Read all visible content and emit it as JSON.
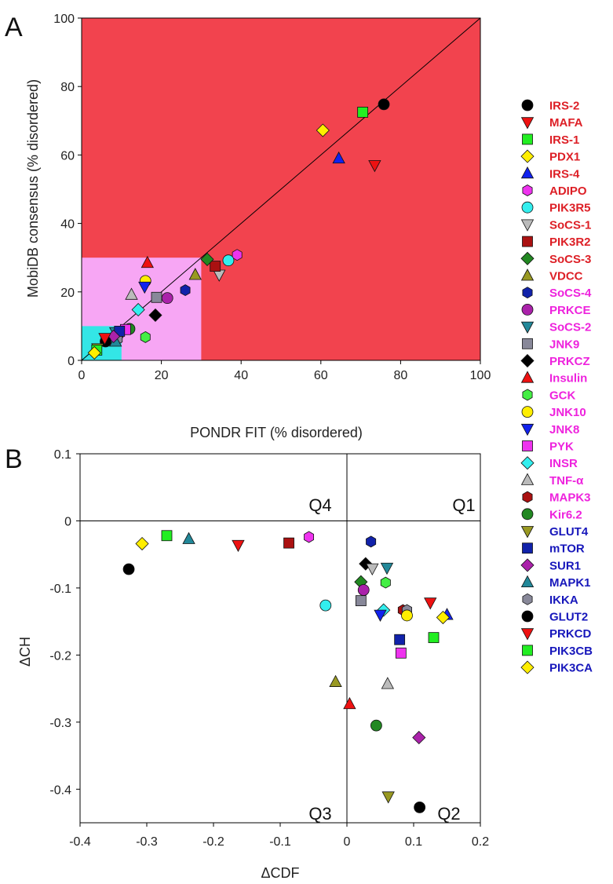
{
  "colors": {
    "red": "#dd1f26",
    "magenta": "#ee22dd",
    "blue": "#1717bb",
    "region_red": "#f2434e",
    "region_pink": "#f7a6f4",
    "region_cyan": "#33e6e6"
  },
  "legend": [
    {
      "name": "IRS-2",
      "marker": "circle",
      "fill": "#000000",
      "label_color": "#dd1f26"
    },
    {
      "name": "MAFA",
      "marker": "triangle-down",
      "fill": "#ee1111",
      "label_color": "#dd1f26"
    },
    {
      "name": "IRS-1",
      "marker": "square",
      "fill": "#22ee22",
      "label_color": "#dd1f26"
    },
    {
      "name": "PDX1",
      "marker": "diamond",
      "fill": "#ffee00",
      "label_color": "#dd1f26"
    },
    {
      "name": "IRS-4",
      "marker": "triangle-up",
      "fill": "#1122ee",
      "label_color": "#dd1f26"
    },
    {
      "name": "ADIPO",
      "marker": "hexagon",
      "fill": "#ee33ee",
      "label_color": "#dd1f26"
    },
    {
      "name": "PIK3R5",
      "marker": "circle",
      "fill": "#33eeee",
      "label_color": "#dd1f26"
    },
    {
      "name": "SoCS-1",
      "marker": "triangle-down",
      "fill": "#bbbbbb",
      "label_color": "#dd1f26"
    },
    {
      "name": "PIK3R2",
      "marker": "square",
      "fill": "#aa1111",
      "label_color": "#dd1f26"
    },
    {
      "name": "SoCS-3",
      "marker": "diamond",
      "fill": "#228822",
      "label_color": "#dd1f26"
    },
    {
      "name": "VDCC",
      "marker": "triangle-up",
      "fill": "#999922",
      "label_color": "#dd1f26"
    },
    {
      "name": "SoCS-4",
      "marker": "hexagon",
      "fill": "#1122aa",
      "label_color": "#ee22dd"
    },
    {
      "name": "PRKCE",
      "marker": "circle",
      "fill": "#aa22aa",
      "label_color": "#ee22dd"
    },
    {
      "name": "SoCS-2",
      "marker": "triangle-down",
      "fill": "#228899",
      "label_color": "#ee22dd"
    },
    {
      "name": "JNK9",
      "marker": "square",
      "fill": "#888899",
      "label_color": "#ee22dd"
    },
    {
      "name": "PRKCZ",
      "marker": "diamond",
      "fill": "#000000",
      "label_color": "#ee22dd"
    },
    {
      "name": "Insulin",
      "marker": "triangle-up",
      "fill": "#ee1111",
      "label_color": "#ee22dd"
    },
    {
      "name": "GCK",
      "marker": "hexagon",
      "fill": "#44ee44",
      "label_color": "#ee22dd"
    },
    {
      "name": "JNK10",
      "marker": "circle",
      "fill": "#ffee00",
      "label_color": "#ee22dd"
    },
    {
      "name": "JNK8",
      "marker": "triangle-down",
      "fill": "#1122ee",
      "label_color": "#ee22dd"
    },
    {
      "name": "PYK",
      "marker": "square",
      "fill": "#ee33ee",
      "label_color": "#ee22dd"
    },
    {
      "name": "INSR",
      "marker": "diamond",
      "fill": "#33eeee",
      "label_color": "#ee22dd"
    },
    {
      "name": "TNF-α",
      "marker": "triangle-up",
      "fill": "#bbbbbb",
      "label_color": "#ee22dd"
    },
    {
      "name": "MAPK3",
      "marker": "hexagon",
      "fill": "#aa1111",
      "label_color": "#ee22dd"
    },
    {
      "name": "Kir6.2",
      "marker": "circle",
      "fill": "#228822",
      "label_color": "#ee22dd"
    },
    {
      "name": "GLUT4",
      "marker": "triangle-down",
      "fill": "#999922",
      "label_color": "#1717bb"
    },
    {
      "name": "mTOR",
      "marker": "square",
      "fill": "#1122aa",
      "label_color": "#1717bb"
    },
    {
      "name": "SUR1",
      "marker": "diamond",
      "fill": "#aa22aa",
      "label_color": "#1717bb"
    },
    {
      "name": "MAPK1",
      "marker": "triangle-up",
      "fill": "#228899",
      "label_color": "#1717bb"
    },
    {
      "name": "IKKA",
      "marker": "hexagon",
      "fill": "#888899",
      "label_color": "#1717bb"
    },
    {
      "name": "GLUT2",
      "marker": "circle",
      "fill": "#000000",
      "label_color": "#1717bb"
    },
    {
      "name": "PRKCD",
      "marker": "triangle-down",
      "fill": "#ee1111",
      "label_color": "#1717bb"
    },
    {
      "name": "PIK3CB",
      "marker": "square",
      "fill": "#22ee22",
      "label_color": "#1717bb"
    },
    {
      "name": "PIK3CA",
      "marker": "diamond",
      "fill": "#ffee00",
      "label_color": "#1717bb"
    }
  ],
  "chart_data": [
    {
      "type": "scatter",
      "panel": "A",
      "xlabel": "PONDR FIT (% disordered)",
      "ylabel": "MobiDB consensus (% disordered)",
      "xlim": [
        0,
        100
      ],
      "ylim": [
        0,
        100
      ],
      "xticks": [
        0,
        20,
        40,
        60,
        80,
        100
      ],
      "yticks": [
        0,
        20,
        40,
        60,
        80,
        100
      ],
      "regions": [
        {
          "x": [
            0,
            100
          ],
          "y": [
            0,
            100
          ],
          "color": "#f2434e"
        },
        {
          "x": [
            0,
            30
          ],
          "y": [
            0,
            30
          ],
          "color": "#f7a6f4"
        },
        {
          "x": [
            0,
            10
          ],
          "y": [
            0,
            10
          ],
          "color": "#33e6e6"
        }
      ],
      "diagonal": true,
      "points": [
        {
          "name": "IRS-2",
          "x": 75.8,
          "y": 74.8
        },
        {
          "name": "IRS-1",
          "x": 70.5,
          "y": 72.5
        },
        {
          "name": "MAFA",
          "x": 73.5,
          "y": 57.0
        },
        {
          "name": "PDX1",
          "x": 60.5,
          "y": 67.2
        },
        {
          "name": "IRS-4",
          "x": 64.5,
          "y": 59.0
        },
        {
          "name": "ADIPO",
          "x": 39.0,
          "y": 30.8
        },
        {
          "name": "PIK3R5",
          "x": 36.8,
          "y": 29.2
        },
        {
          "name": "SoCS-1",
          "x": 34.5,
          "y": 25.0
        },
        {
          "name": "PIK3R2",
          "x": 33.5,
          "y": 27.5
        },
        {
          "name": "SoCS-3",
          "x": 31.5,
          "y": 29.5
        },
        {
          "name": "VDCC",
          "x": 28.5,
          "y": 25.0
        },
        {
          "name": "SoCS-4",
          "x": 26.0,
          "y": 20.5
        },
        {
          "name": "PRKCE",
          "x": 21.5,
          "y": 18.2
        },
        {
          "name": "JNK9",
          "x": 18.8,
          "y": 18.4
        },
        {
          "name": "PRKCZ",
          "x": 18.5,
          "y": 13.2
        },
        {
          "name": "Insulin",
          "x": 16.5,
          "y": 28.5
        },
        {
          "name": "GCK",
          "x": 16.0,
          "y": 6.8
        },
        {
          "name": "JNK10",
          "x": 16.0,
          "y": 23.2
        },
        {
          "name": "JNK8",
          "x": 15.8,
          "y": 21.5
        },
        {
          "name": "INSR",
          "x": 14.2,
          "y": 14.8
        },
        {
          "name": "TNF-α",
          "x": 12.5,
          "y": 19.2
        },
        {
          "name": "Kir6.2",
          "x": 12.0,
          "y": 9.2
        },
        {
          "name": "PYK",
          "x": 11.0,
          "y": 9.0
        },
        {
          "name": "MAPK3",
          "x": 9.2,
          "y": 7.5
        },
        {
          "name": "SoCS-2",
          "x": 8.5,
          "y": 8.2
        },
        {
          "name": "IKKA",
          "x": 9.0,
          "y": 6.2
        },
        {
          "name": "mTOR",
          "x": 9.5,
          "y": 8.5
        },
        {
          "name": "MAPK1",
          "x": 8.5,
          "y": 5.5
        },
        {
          "name": "SUR1",
          "x": 8.0,
          "y": 7.0
        },
        {
          "name": "GLUT2",
          "x": 6.0,
          "y": 5.5
        },
        {
          "name": "PRKCD",
          "x": 5.8,
          "y": 6.5
        },
        {
          "name": "GLUT4",
          "x": 4.0,
          "y": 3.5
        },
        {
          "name": "PIK3CB",
          "x": 3.8,
          "y": 3.0
        },
        {
          "name": "PIK3CA",
          "x": 3.2,
          "y": 2.2
        }
      ]
    },
    {
      "type": "scatter",
      "panel": "B",
      "xlabel": "ΔCDF",
      "ylabel": "ΔCH",
      "xlim": [
        -0.4,
        0.2
      ],
      "ylim": [
        -0.45,
        0.1
      ],
      "xticks": [
        -0.4,
        -0.3,
        -0.2,
        -0.1,
        0.0,
        0.1,
        0.2
      ],
      "yticks": [
        -0.4,
        -0.3,
        -0.2,
        -0.1,
        0.0,
        0.1
      ],
      "quadrants": [
        "Q1",
        "Q2",
        "Q3",
        "Q4"
      ],
      "points": [
        {
          "name": "GLUT2",
          "x": -0.327,
          "y": -0.072
        },
        {
          "name": "PIK3CA",
          "x": -0.307,
          "y": -0.034
        },
        {
          "name": "PIK3CB",
          "x": -0.27,
          "y": -0.022
        },
        {
          "name": "MAPK1",
          "x": -0.237,
          "y": -0.027
        },
        {
          "name": "PRKCD",
          "x": -0.163,
          "y": -0.036
        },
        {
          "name": "PIK3R2",
          "x": -0.087,
          "y": -0.033
        },
        {
          "name": "ADIPO",
          "x": -0.057,
          "y": -0.024
        },
        {
          "name": "PIK3R5",
          "x": -0.032,
          "y": -0.126
        },
        {
          "name": "VDCC",
          "x": -0.017,
          "y": -0.24
        },
        {
          "name": "Insulin",
          "x": 0.004,
          "y": -0.273
        },
        {
          "name": "SoCS-4",
          "x": 0.036,
          "y": -0.031
        },
        {
          "name": "PRKCZ",
          "x": 0.028,
          "y": -0.064
        },
        {
          "name": "SoCS-1",
          "x": 0.038,
          "y": -0.071
        },
        {
          "name": "SoCS-2",
          "x": 0.06,
          "y": -0.07
        },
        {
          "name": "SoCS-3",
          "x": 0.021,
          "y": -0.091
        },
        {
          "name": "GCK",
          "x": 0.058,
          "y": -0.092
        },
        {
          "name": "PRKCE",
          "x": 0.025,
          "y": -0.103
        },
        {
          "name": "JNK9",
          "x": 0.021,
          "y": -0.119
        },
        {
          "name": "MAPK3",
          "x": 0.084,
          "y": -0.133
        },
        {
          "name": "IKKA",
          "x": 0.09,
          "y": -0.133
        },
        {
          "name": "INSR",
          "x": 0.055,
          "y": -0.133
        },
        {
          "name": "JNK8",
          "x": 0.05,
          "y": -0.14
        },
        {
          "name": "JNK10",
          "x": 0.09,
          "y": -0.141
        },
        {
          "name": "IRS-1",
          "x": 0.13,
          "y": -0.174
        },
        {
          "name": "MAFA",
          "x": 0.125,
          "y": -0.122
        },
        {
          "name": "IRS-4",
          "x": 0.15,
          "y": -0.14
        },
        {
          "name": "PDX1",
          "x": 0.144,
          "y": -0.144
        },
        {
          "name": "mTOR",
          "x": 0.079,
          "y": -0.177
        },
        {
          "name": "PYK",
          "x": 0.081,
          "y": -0.197
        },
        {
          "name": "TNF-α",
          "x": 0.061,
          "y": -0.243
        },
        {
          "name": "Kir6.2",
          "x": 0.044,
          "y": -0.305
        },
        {
          "name": "SUR1",
          "x": 0.108,
          "y": -0.323
        },
        {
          "name": "GLUT4",
          "x": 0.062,
          "y": -0.411
        },
        {
          "name": "IRS-2",
          "x": 0.109,
          "y": -0.427
        }
      ]
    }
  ],
  "panel_letters": {
    "a": "A",
    "b": "B"
  }
}
